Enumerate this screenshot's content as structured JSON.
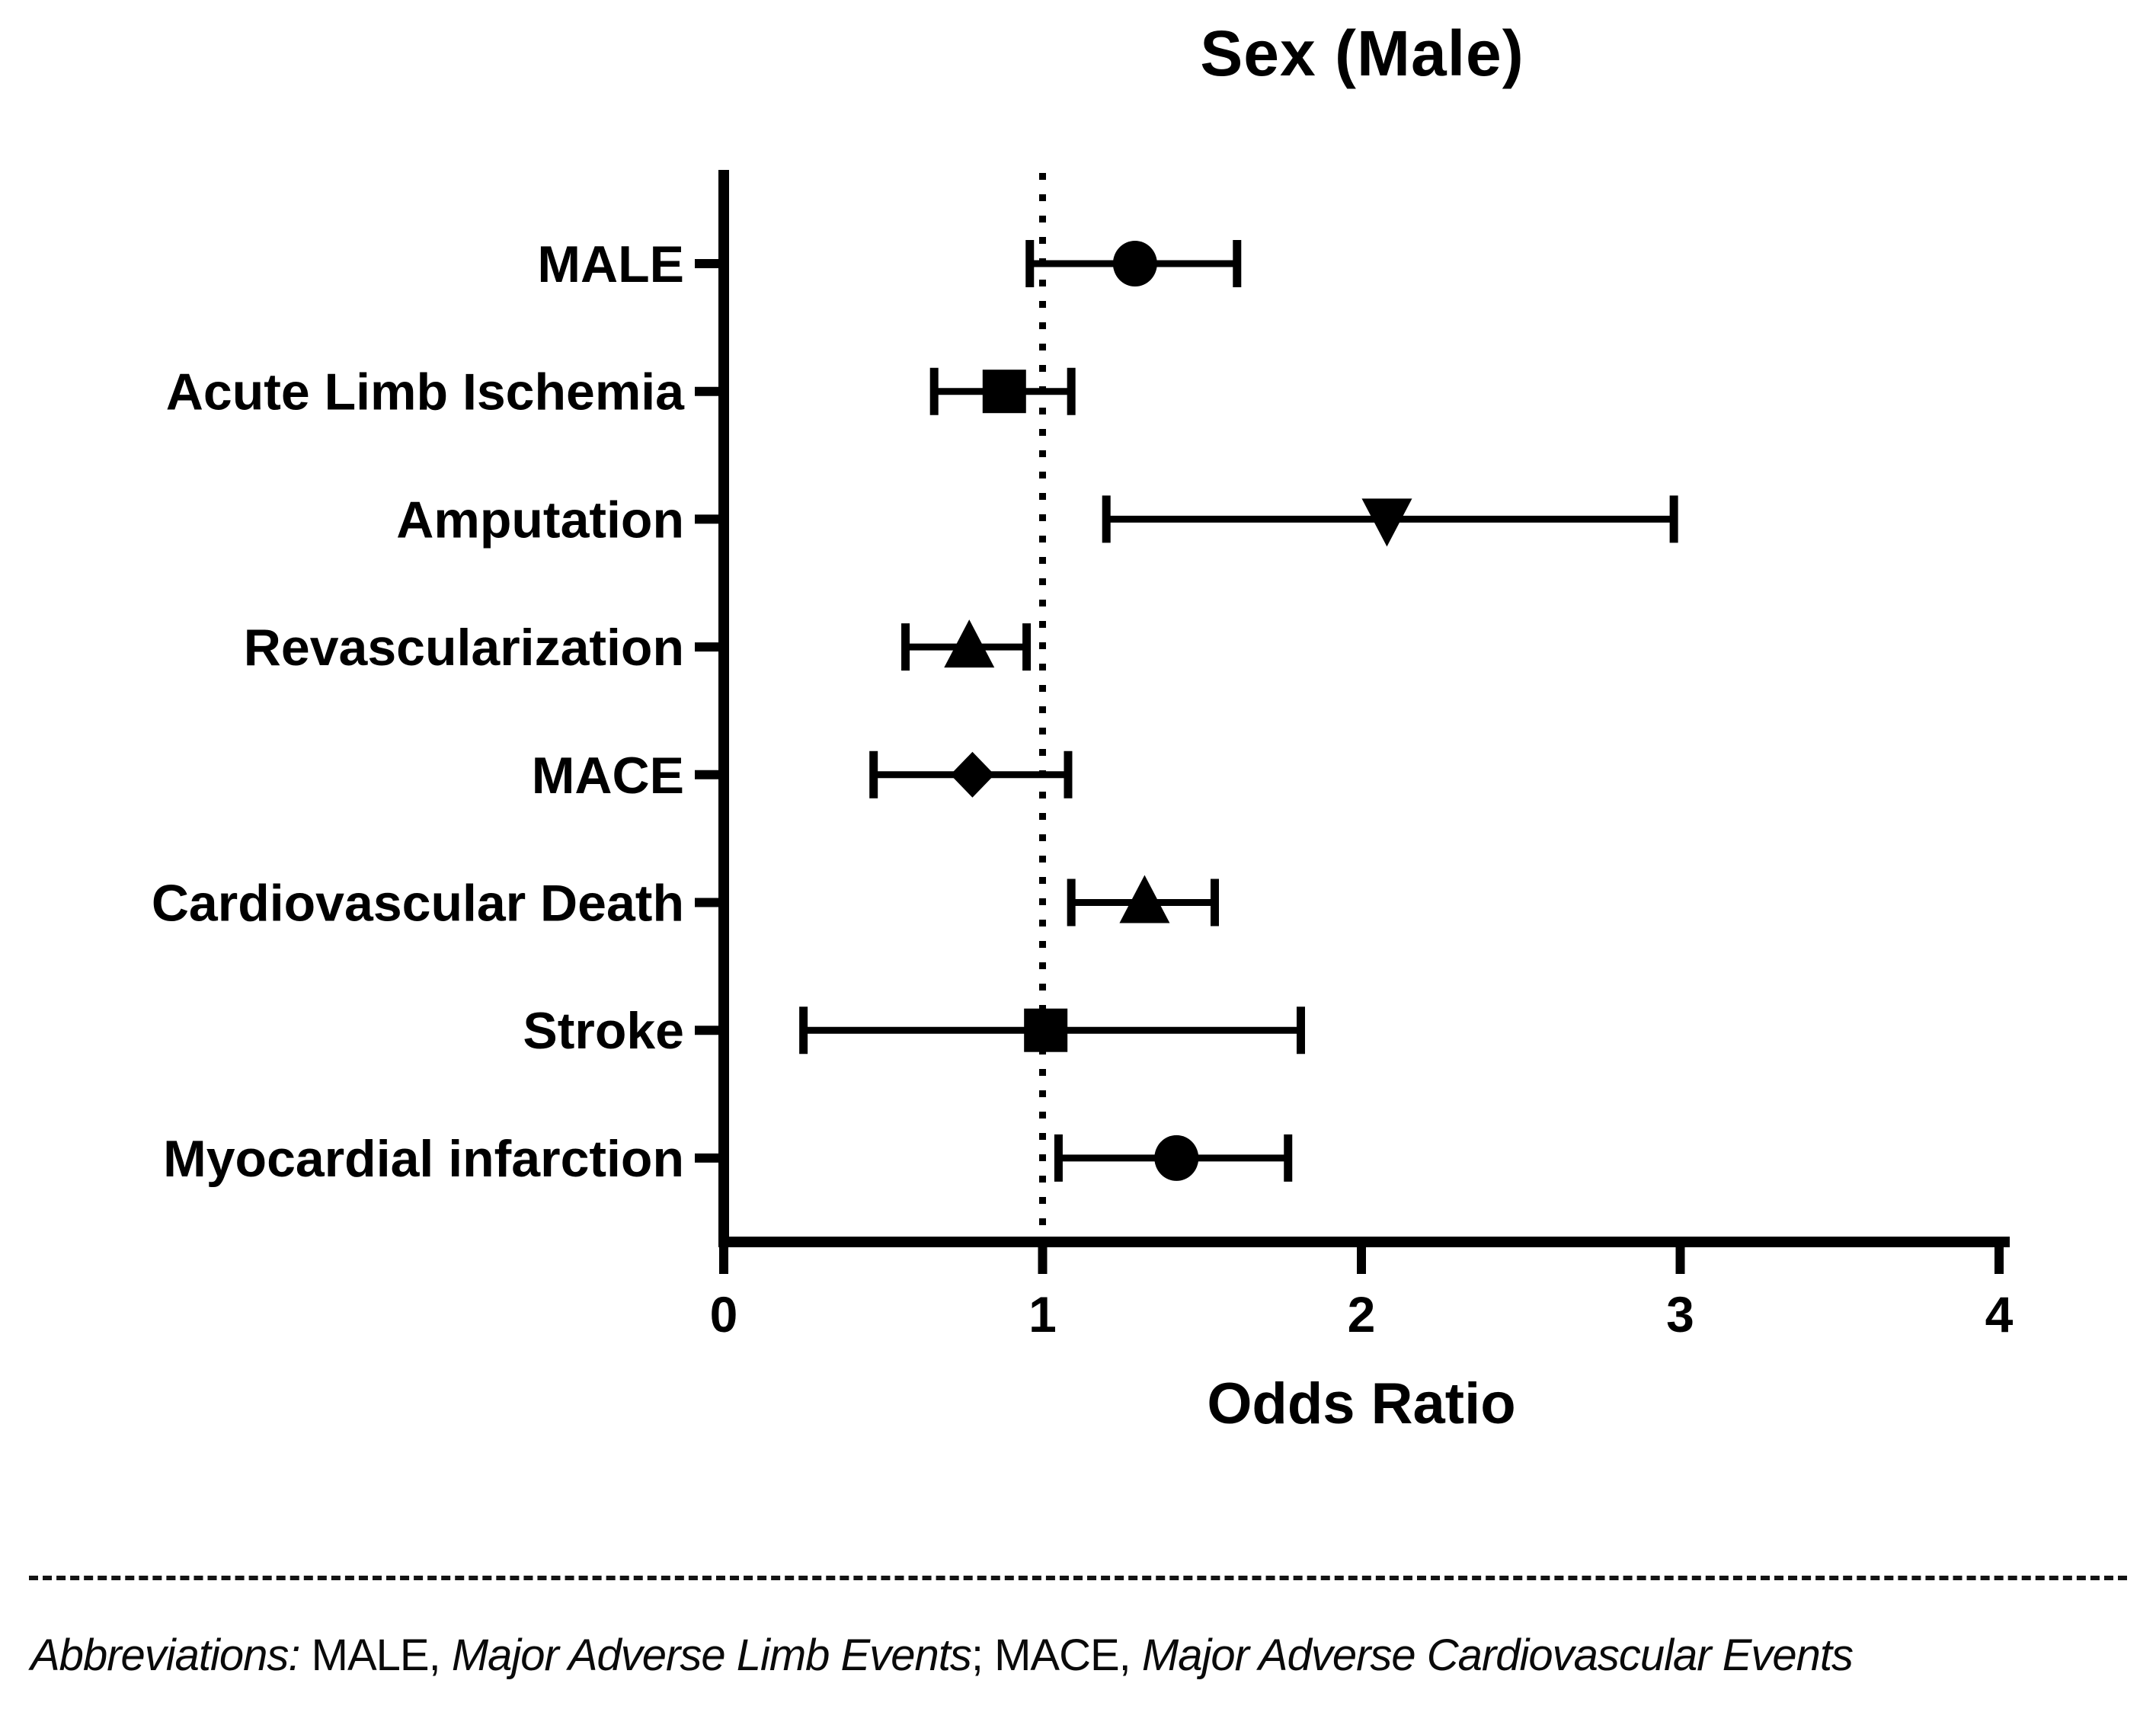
{
  "chart_data": {
    "type": "scatter",
    "variant": "forest-plot",
    "title": "Sex (Male)",
    "xlabel": "Odds Ratio",
    "xlim": [
      0,
      4
    ],
    "xticks": [
      0,
      1,
      2,
      3,
      4
    ],
    "reference_line_x": 1,
    "grid": "off",
    "rows": [
      {
        "label": "MALE",
        "or": 1.29,
        "ci_low": 0.96,
        "ci_high": 1.61,
        "marker": "circle"
      },
      {
        "label": "Acute Limb Ischemia",
        "or": 0.88,
        "ci_low": 0.66,
        "ci_high": 1.09,
        "marker": "square"
      },
      {
        "label": "Amputation",
        "or": 2.08,
        "ci_low": 1.2,
        "ci_high": 2.98,
        "marker": "triangle-down"
      },
      {
        "label": "Revascularization",
        "or": 0.77,
        "ci_low": 0.57,
        "ci_high": 0.95,
        "marker": "triangle-up"
      },
      {
        "label": "MACE",
        "or": 0.78,
        "ci_low": 0.47,
        "ci_high": 1.08,
        "marker": "diamond"
      },
      {
        "label": "Cardiovascular Death",
        "or": 1.32,
        "ci_low": 1.09,
        "ci_high": 1.54,
        "marker": "triangle-up"
      },
      {
        "label": "Stroke",
        "or": 1.01,
        "ci_low": 0.25,
        "ci_high": 1.81,
        "marker": "square"
      },
      {
        "label": "Myocardial infarction",
        "or": 1.42,
        "ci_low": 1.05,
        "ci_high": 1.77,
        "marker": "circle"
      }
    ],
    "colors": {
      "marker": "#000000",
      "error_bar": "#000000",
      "axis": "#000000",
      "reference_line": "#000000",
      "background": "#ffffff"
    }
  },
  "footer": {
    "segments": [
      {
        "text": "Abbreviations:",
        "italic": true
      },
      {
        "text": " MALE, ",
        "italic": false
      },
      {
        "text": "Major Adverse Limb Events",
        "italic": true
      },
      {
        "text": "; MACE, ",
        "italic": false
      },
      {
        "text": "Major Adverse Cardiovascular Events",
        "italic": true
      }
    ]
  }
}
